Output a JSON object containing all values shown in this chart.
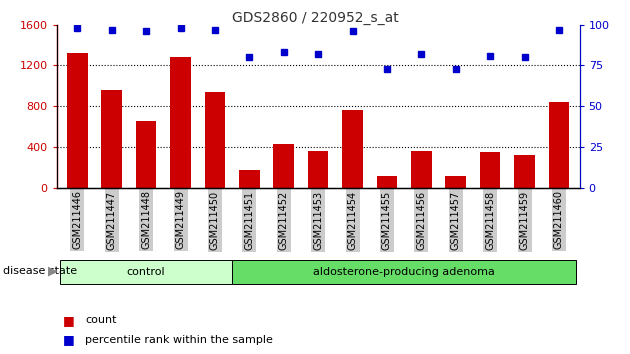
{
  "title": "GDS2860 / 220952_s_at",
  "samples": [
    "GSM211446",
    "GSM211447",
    "GSM211448",
    "GSM211449",
    "GSM211450",
    "GSM211451",
    "GSM211452",
    "GSM211453",
    "GSM211454",
    "GSM211455",
    "GSM211456",
    "GSM211457",
    "GSM211458",
    "GSM211459",
    "GSM211460"
  ],
  "counts": [
    1320,
    960,
    650,
    1280,
    940,
    175,
    430,
    360,
    760,
    110,
    360,
    115,
    350,
    320,
    840
  ],
  "percentiles": [
    98,
    97,
    96,
    98,
    97,
    80,
    83,
    82,
    96,
    73,
    82,
    73,
    81,
    80,
    97
  ],
  "groups": [
    "control",
    "control",
    "control",
    "control",
    "control",
    "adenoma",
    "adenoma",
    "adenoma",
    "adenoma",
    "adenoma",
    "adenoma",
    "adenoma",
    "adenoma",
    "adenoma",
    "adenoma"
  ],
  "control_color": "#ccffcc",
  "adenoma_color": "#66dd66",
  "bar_color": "#cc0000",
  "dot_color": "#0000cc",
  "left_ylim": [
    0,
    1600
  ],
  "left_yticks": [
    0,
    400,
    800,
    1200,
    1600
  ],
  "right_ylim": [
    0,
    100
  ],
  "right_yticks": [
    0,
    25,
    50,
    75,
    100
  ],
  "background_color": "#ffffff",
  "plot_bg_color": "#ffffff",
  "tick_label_bg": "#cccccc",
  "group_label_control": "control",
  "group_label_adenoma": "aldosterone-producing adenoma",
  "disease_state_label": "disease state",
  "legend_count": "count",
  "legend_percentile": "percentile rank within the sample",
  "n_control": 5,
  "n_adenoma": 10
}
